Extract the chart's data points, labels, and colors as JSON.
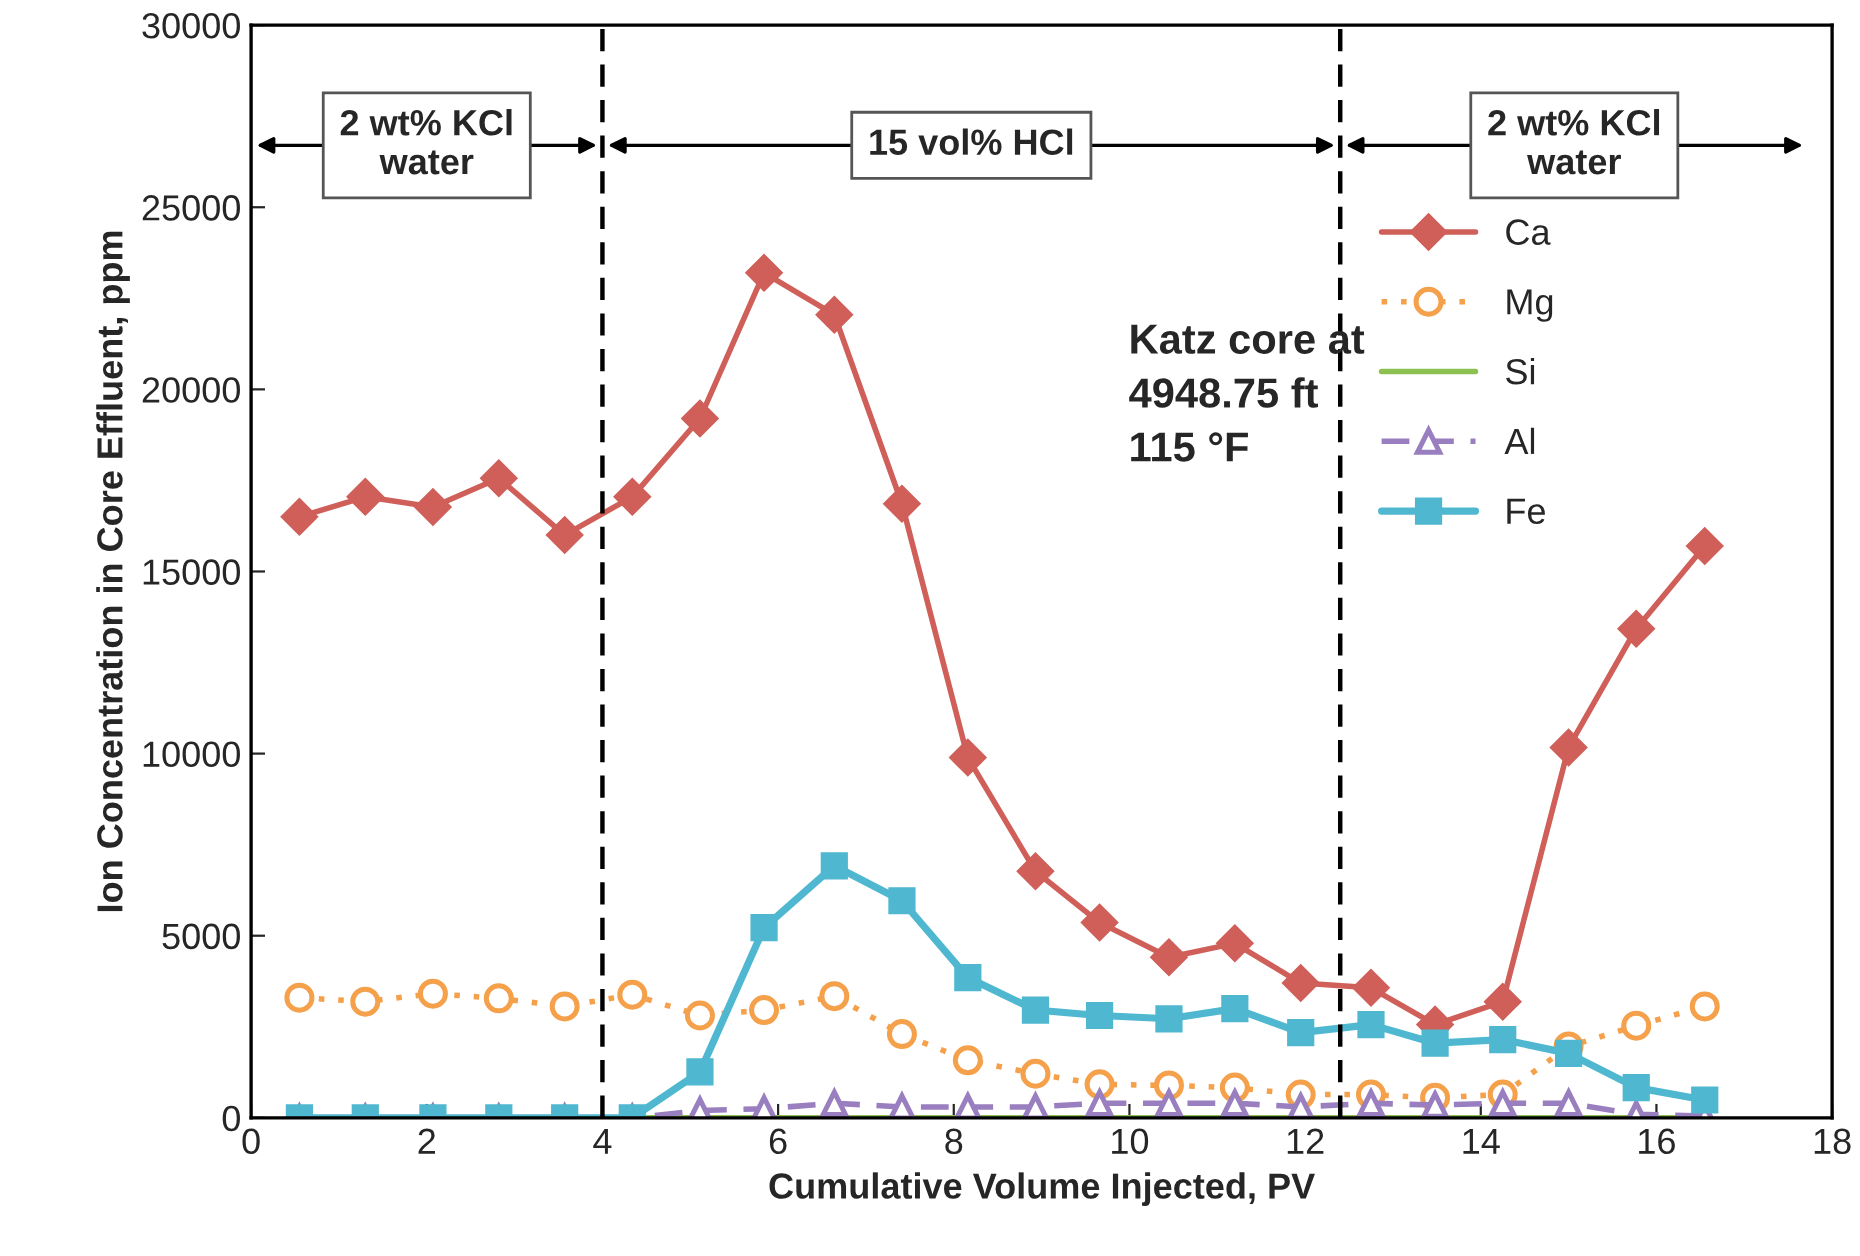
{
  "chart_data": {
    "type": "line",
    "xlabel": "Cumulative Volume Injected, PV",
    "ylabel": "Ion Concentration in Core Effluent, ppm",
    "x": [
      0.55,
      1.3,
      2.07,
      2.82,
      3.57,
      4.34,
      5.11,
      5.84,
      6.64,
      7.41,
      8.16,
      8.93,
      9.66,
      10.45,
      11.2,
      11.95,
      12.75,
      13.48,
      14.25,
      15.0,
      15.77,
      16.55
    ],
    "series": [
      {
        "name": "Ca",
        "color": "#cf5f58",
        "marker": "diamond",
        "line_style": "solid",
        "values": [
          16500,
          17050,
          16770,
          17560,
          16000,
          17050,
          19200,
          23200,
          22050,
          16860,
          9890,
          6770,
          5360,
          4410,
          4790,
          3700,
          3570,
          2560,
          3190,
          10170,
          13430,
          15700
        ]
      },
      {
        "name": "Mg",
        "color": "#f5a04a",
        "marker": "circle",
        "line_style": "dotted",
        "values": [
          3300,
          3190,
          3410,
          3280,
          3060,
          3380,
          2810,
          2960,
          3340,
          2300,
          1580,
          1210,
          920,
          890,
          830,
          640,
          640,
          550,
          640,
          1960,
          2530,
          3060
        ]
      },
      {
        "name": "Si",
        "color": "#8cc152",
        "marker": "none",
        "line_style": "solid",
        "values": [
          null,
          null,
          null,
          null,
          null,
          0,
          0,
          0,
          0,
          0,
          0,
          0,
          0,
          0,
          0,
          0,
          0,
          0,
          0,
          0,
          0,
          0
        ]
      },
      {
        "name": "Al",
        "color": "#9a7fc0",
        "marker": "triangle",
        "line_style": "dashed",
        "values": [
          0,
          0,
          0,
          0,
          0,
          0,
          200,
          250,
          400,
          300,
          300,
          300,
          400,
          400,
          400,
          300,
          400,
          350,
          400,
          400,
          100,
          50
        ]
      },
      {
        "name": "Fe",
        "color": "#4fb8d0",
        "marker": "square",
        "line_style": "solid",
        "values": [
          0,
          0,
          0,
          0,
          0,
          0,
          1260,
          5220,
          6920,
          5960,
          3850,
          2960,
          2810,
          2720,
          3000,
          2340,
          2560,
          2050,
          2150,
          1770,
          830,
          490
        ]
      }
    ],
    "xlim": [
      0,
      18
    ],
    "xticks": [
      0,
      2,
      4,
      6,
      8,
      10,
      12,
      14,
      16,
      18
    ],
    "ylim": [
      0,
      30000
    ],
    "yticks": [
      0,
      5000,
      10000,
      15000,
      20000,
      25000,
      30000
    ],
    "ref_lines": [
      {
        "axis": "x",
        "value": 4.0,
        "line_style": "dashed",
        "color": "#000000"
      },
      {
        "axis": "x",
        "value": 12.4,
        "line_style": "dashed",
        "color": "#000000"
      }
    ],
    "annotations": [
      "2 wt% KCl\nwater",
      "15 vol% HCl",
      "2 wt% KCl\nwater",
      "Katz core at\n4948.75 ft\n115 °F"
    ],
    "grid": false,
    "legend": "right"
  }
}
